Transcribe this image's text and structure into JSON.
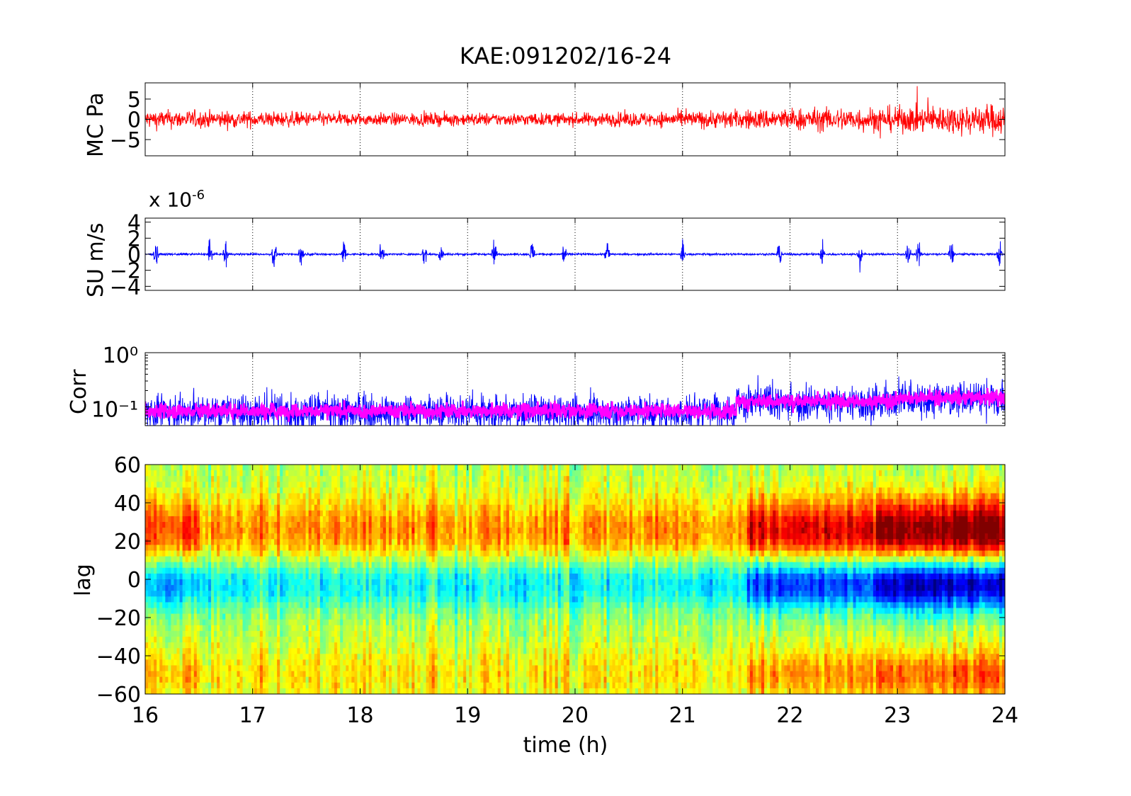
{
  "title": "KAE:091202/16-24",
  "xlabel": "time (h)",
  "colors": {
    "pa": "#ff0000",
    "su": "#0000ff",
    "corr_a": "#0000ff",
    "corr_b": "#ff00ff"
  },
  "chart_data": [
    {
      "type": "line",
      "ylabel": "MC Pa",
      "x_range": [
        16,
        24
      ],
      "ylim": [
        -9,
        9
      ],
      "yticks": [
        5,
        0,
        -5
      ],
      "grid": "x dotted",
      "series": [
        {
          "color": "#ff0000",
          "envelope": [
            [
              16,
              3
            ],
            [
              17,
              2.5
            ],
            [
              18,
              2
            ],
            [
              19,
              2
            ],
            [
              20,
              2
            ],
            [
              21,
              2.5
            ],
            [
              22,
              3.5
            ],
            [
              23,
              4
            ],
            [
              24,
              5
            ]
          ]
        }
      ]
    },
    {
      "type": "line",
      "ylabel": "SU m/s",
      "exponent": "x 10",
      "exponent_power": "-6",
      "x_range": [
        16,
        24
      ],
      "ylim": [
        -4.5,
        4.5
      ],
      "yticks": [
        4,
        2,
        0,
        -2,
        -4
      ],
      "grid": "x dotted",
      "series": [
        {
          "color": "#0000ff",
          "bursts": [
            16.1,
            16.6,
            16.75,
            17.2,
            17.45,
            17.85,
            18.2,
            18.6,
            18.75,
            19.25,
            19.6,
            19.9,
            20.3,
            21.0,
            21.9,
            22.3,
            22.65,
            23.1,
            23.2,
            23.5,
            23.95
          ]
        }
      ]
    },
    {
      "type": "line",
      "ylabel": "Corr",
      "yscale": "log",
      "yticks": [
        "10^0",
        "10^-1"
      ],
      "x_range": [
        16,
        24
      ],
      "ylim": [
        0.045,
        1
      ],
      "grid": "x dotted",
      "series": [
        {
          "color": "#0000ff"
        },
        {
          "color": "#ff00ff"
        }
      ]
    },
    {
      "type": "heatmap",
      "ylabel": "lag",
      "x_range": [
        16,
        24
      ],
      "xticks": [
        16,
        17,
        18,
        19,
        20,
        21,
        22,
        23,
        24
      ],
      "ylim": [
        -60,
        60
      ],
      "yticks": [
        60,
        40,
        20,
        0,
        -20,
        -40,
        -60
      ],
      "colormap": "jet"
    }
  ]
}
